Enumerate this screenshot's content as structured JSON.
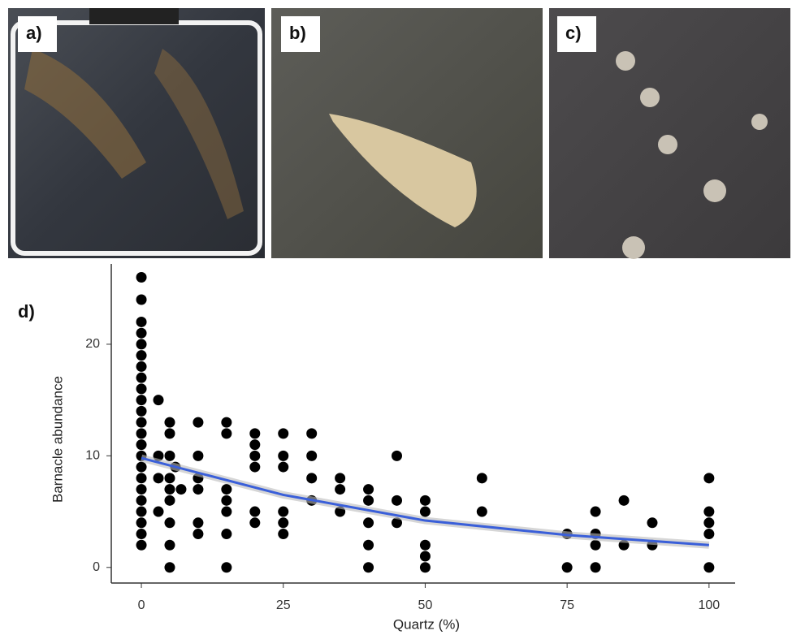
{
  "panel_labels": [
    "a)",
    "b)",
    "c)",
    "d)"
  ],
  "chart_data": {
    "type": "scatter",
    "x_label": "Quartz (%)",
    "y_label": "Barnacle abundance",
    "xlim": [
      -5.3,
      104.6
    ],
    "ylim": [
      -1.4,
      27.2
    ],
    "xticks": [
      0,
      25,
      50,
      75,
      100
    ],
    "yticks": [
      0,
      10,
      20
    ],
    "series": [
      {
        "color": "#000000",
        "x": [
          0,
          0,
          0,
          0,
          0,
          0,
          0,
          0,
          0,
          0,
          0,
          0,
          0,
          0,
          0,
          0,
          0,
          0,
          0,
          0,
          0,
          0,
          0,
          3,
          3,
          3,
          3,
          5,
          5,
          5,
          5,
          5,
          5,
          5,
          5,
          5,
          6,
          7,
          10,
          10,
          10,
          10,
          10,
          10,
          15,
          15,
          15,
          15,
          15,
          15,
          15,
          20,
          20,
          20,
          20,
          20,
          20,
          25,
          25,
          25,
          25,
          25,
          25,
          30,
          30,
          30,
          30,
          35,
          35,
          35,
          40,
          40,
          40,
          40,
          40,
          45,
          45,
          45,
          50,
          50,
          50,
          50,
          50,
          60,
          60,
          75,
          75,
          80,
          80,
          80,
          80,
          85,
          85,
          90,
          90,
          100,
          100,
          100,
          100,
          100
        ],
        "values": [
          2,
          3,
          4,
          5,
          6,
          7,
          8,
          9,
          10,
          11,
          12,
          13,
          14,
          15,
          16,
          17,
          18,
          19,
          20,
          21,
          22,
          24,
          26,
          15,
          10,
          8,
          5,
          13,
          12,
          10,
          8,
          7,
          6,
          4,
          2,
          0,
          9,
          7,
          13,
          10,
          8,
          7,
          4,
          3,
          13,
          12,
          7,
          6,
          5,
          3,
          0,
          12,
          11,
          10,
          9,
          5,
          4,
          12,
          10,
          9,
          5,
          4,
          3,
          12,
          10,
          8,
          6,
          8,
          7,
          5,
          7,
          6,
          4,
          2,
          0,
          10,
          6,
          4,
          6,
          5,
          2,
          1,
          0,
          8,
          5,
          3,
          0,
          5,
          3,
          2,
          0,
          6,
          2,
          4,
          2,
          8,
          5,
          4,
          3,
          0
        ]
      },
      {
        "color": "#3a5fd9",
        "x": [
          0,
          25,
          50,
          75,
          100
        ],
        "values": [
          9.8,
          6.5,
          4.2,
          2.9,
          2.0
        ]
      }
    ]
  }
}
